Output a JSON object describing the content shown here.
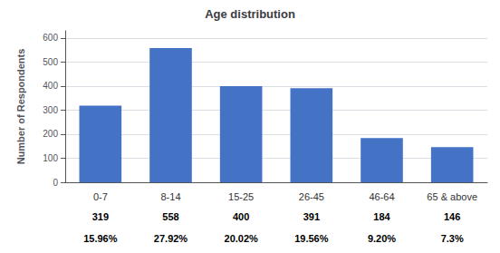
{
  "chart_data": {
    "type": "bar",
    "title": "Age distribution",
    "categories": [
      "0-7",
      "8-14",
      "15-25",
      "26-45",
      "46-64",
      "65 & above"
    ],
    "values": [
      319,
      558,
      400,
      391,
      184,
      146
    ],
    "annotations": [
      "15.96%",
      "27.92%",
      "20.02%",
      "19.56%",
      "9.20%",
      "7.3%"
    ],
    "color": "#4472C4",
    "ylabel": "Number of Respondents",
    "ylim": [
      0,
      630
    ],
    "yticks": [
      0,
      100,
      200,
      300,
      400,
      500,
      600
    ],
    "grid": true,
    "data_labels": true
  }
}
